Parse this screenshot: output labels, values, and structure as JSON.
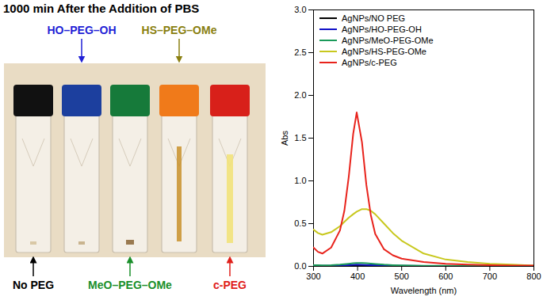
{
  "title": "1000 min After the Addition of PBS",
  "photo": {
    "labels_above": [
      {
        "text": "HO–PEG–OH",
        "color": "#1f1fd6"
      },
      {
        "text": "HS–PEG–OMe",
        "color": "#8a7f10"
      }
    ],
    "labels_below": [
      {
        "text": "No PEG",
        "color": "#000000"
      },
      {
        "text": "MeO–PEG–OMe",
        "color": "#1a8f2a"
      },
      {
        "text": "c-PEG",
        "color": "#e0201b"
      }
    ]
  },
  "chart_data": {
    "type": "line",
    "x_label": "Wavelength (nm)",
    "y_label": "Abs",
    "x": [
      300,
      310,
      320,
      340,
      360,
      370,
      380,
      390,
      398,
      410,
      420,
      430,
      440,
      460,
      480,
      500,
      550,
      600,
      650,
      700,
      750,
      800
    ],
    "series": [
      {
        "name": "AgNPs/NO PEG",
        "color": "#000000",
        "values": [
          0.005,
          0.005,
          0.005,
          0.005,
          0.005,
          0.005,
          0.005,
          0.005,
          0.005,
          0.005,
          0.005,
          0.005,
          0.005,
          0.005,
          0.005,
          0.005,
          0.005,
          0.005,
          0.005,
          0.005,
          0.005,
          0.005
        ]
      },
      {
        "name": "AgNPs/HO-PEG-OH",
        "color": "#1010c8",
        "values": [
          0.008,
          0.007,
          0.007,
          0.008,
          0.01,
          0.012,
          0.015,
          0.018,
          0.02,
          0.019,
          0.017,
          0.015,
          0.013,
          0.01,
          0.008,
          0.007,
          0.005,
          0.004,
          0.004,
          0.003,
          0.003,
          0.003
        ]
      },
      {
        "name": "AgNPs/MeO-PEG-OMe",
        "color": "#1a9a5a",
        "values": [
          0.015,
          0.013,
          0.012,
          0.014,
          0.02,
          0.025,
          0.03,
          0.036,
          0.04,
          0.04,
          0.037,
          0.032,
          0.028,
          0.02,
          0.015,
          0.012,
          0.008,
          0.006,
          0.005,
          0.004,
          0.004,
          0.003
        ]
      },
      {
        "name": "AgNPs/HS-PEG-OMe",
        "color": "#c8c81e",
        "values": [
          0.43,
          0.39,
          0.37,
          0.4,
          0.47,
          0.52,
          0.57,
          0.61,
          0.64,
          0.67,
          0.67,
          0.65,
          0.61,
          0.5,
          0.39,
          0.3,
          0.15,
          0.08,
          0.05,
          0.03,
          0.02,
          0.01
        ]
      },
      {
        "name": "AgNPs/c-PEG",
        "color": "#e8231c",
        "values": [
          0.22,
          0.17,
          0.15,
          0.22,
          0.42,
          0.65,
          1.05,
          1.55,
          1.8,
          1.45,
          0.95,
          0.6,
          0.38,
          0.2,
          0.13,
          0.09,
          0.05,
          0.03,
          0.02,
          0.015,
          0.01,
          0.01
        ]
      }
    ],
    "xlim": [
      300,
      800
    ],
    "xticks": [
      300,
      400,
      500,
      600,
      700,
      800
    ],
    "ylim": [
      0,
      3
    ],
    "yticks": [
      {
        "value": 0,
        "label": "0.0"
      },
      0.5,
      {
        "value": 1,
        "label": "1.0"
      },
      1.5,
      {
        "value": 2,
        "label": "2.0"
      },
      2.5,
      {
        "value": 3,
        "label": "3.0"
      }
    ],
    "legend": "top-left",
    "grid": false
  }
}
